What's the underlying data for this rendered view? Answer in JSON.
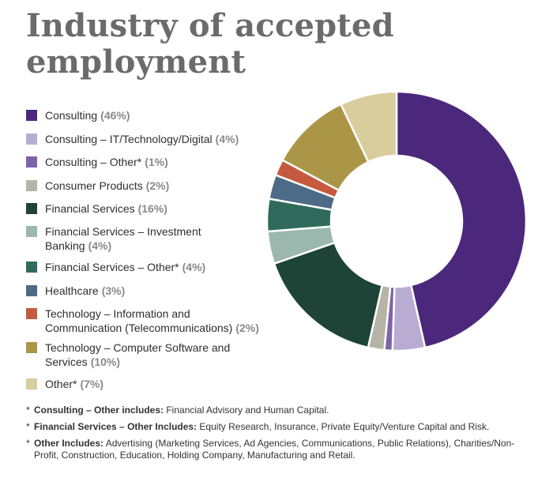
{
  "title_line1": "Industry of accepted",
  "title_line2": "employment",
  "chart_data": {
    "type": "pie",
    "title": "Industry of accepted employment",
    "slices": [
      {
        "label": "Consulting",
        "label_lines": [
          "Consulting"
        ],
        "value": 46,
        "pct_text": "(46%)",
        "color": "#4b287b"
      },
      {
        "label": "Consulting – IT/Technology/Digital",
        "label_lines": [
          "Consulting – IT/Technology/Digital"
        ],
        "value": 4,
        "pct_text": "(4%)",
        "color": "#b9acd3"
      },
      {
        "label": "Consulting – Other*",
        "label_lines": [
          "Consulting – Other*"
        ],
        "value": 1,
        "pct_text": "(1%)",
        "color": "#7f63a8"
      },
      {
        "label": "Consumer Products",
        "label_lines": [
          "Consumer Products"
        ],
        "value": 2,
        "pct_text": "(2%)",
        "color": "#b6b4a5"
      },
      {
        "label": "Financial Services",
        "label_lines": [
          "Financial Services"
        ],
        "value": 16,
        "pct_text": "(16%)",
        "color": "#1d4437"
      },
      {
        "label": "Financial Services – Investment Banking",
        "label_lines": [
          "Financial Services – Investment",
          "Banking"
        ],
        "value": 4,
        "pct_text": "(4%)",
        "color": "#9cb7ae"
      },
      {
        "label": "Financial Services – Other*",
        "label_lines": [
          "Financial Services – Other*"
        ],
        "value": 4,
        "pct_text": "(4%)",
        "color": "#2f6a5c"
      },
      {
        "label": "Healthcare",
        "label_lines": [
          "Healthcare"
        ],
        "value": 3,
        "pct_text": "(3%)",
        "color": "#4d6a87"
      },
      {
        "label": "Technology – Information and Communication (Telecommunications)",
        "label_lines": [
          "Technology – Information and",
          "Communication (Telecommunications)"
        ],
        "value": 2,
        "pct_text": "(2%)",
        "color": "#c55a3f"
      },
      {
        "label": "Technology – Computer Software and Services",
        "label_lines": [
          "Technology – Computer Software and",
          "Services"
        ],
        "value": 10,
        "pct_text": "(10%)",
        "color": "#aa9646"
      },
      {
        "label": "Other*",
        "label_lines": [
          "Other*"
        ],
        "value": 7,
        "pct_text": "(7%)",
        "color": "#d9cc9d"
      }
    ],
    "legend": "left",
    "donut": true
  },
  "notes": [
    {
      "star": "*",
      "bold": "Consulting – Other includes:",
      "text": " Financial Advisory and Human Capital."
    },
    {
      "star": "*",
      "bold": "Financial Services – Other Includes:",
      "text": " Equity Research, Insurance, Private Equity/Venture Capital and Risk."
    },
    {
      "star": "*",
      "bold": "Other Includes:",
      "text": " Advertising (Marketing Services, Ad Agencies, Communications, Public Relations), Charities/Non-Profit, Construction, Education, Holding Company, Manufacturing and Retail."
    }
  ]
}
